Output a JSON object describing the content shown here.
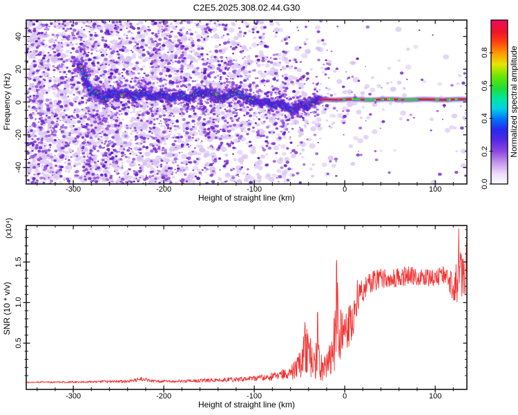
{
  "figure": {
    "title": "C2E5.2025.308.02.44.G30",
    "background": "#ffffff",
    "frame_color": "#111111"
  },
  "chart_data": [
    {
      "type": "heatmap",
      "name": "spectrogram",
      "title": "C2E5.2025.308.02.44.G30",
      "xlabel": "Height of straight line (km)",
      "ylabel": "Frequency (Hz)",
      "xlim": [
        -352,
        135
      ],
      "ylim": [
        -50,
        50
      ],
      "xticks": [
        {
          "v": -300,
          "label": "-300"
        },
        {
          "v": -200,
          "label": "-200"
        },
        {
          "v": -100,
          "label": "-100"
        },
        {
          "v": 0,
          "label": "0"
        },
        {
          "v": 100,
          "label": "100"
        }
      ],
      "xtick_minor_step": 20,
      "yticks": [
        {
          "v": 40,
          "label": "40"
        },
        {
          "v": 20,
          "label": "20"
        },
        {
          "v": 0,
          "label": "0"
        },
        {
          "v": -20,
          "label": "-20"
        },
        {
          "v": -40,
          "label": "-40"
        }
      ],
      "ytick_minor_step": 5,
      "colorbar": {
        "label": "Normalized spectral amplitude",
        "range": [
          0,
          1
        ],
        "ticks": [
          {
            "v": 0.0,
            "label": "0.0"
          },
          {
            "v": 0.2,
            "label": "0.2"
          },
          {
            "v": 0.4,
            "label": "0.4"
          },
          {
            "v": 0.6,
            "label": "0.6"
          },
          {
            "v": 0.8,
            "label": "0.8"
          }
        ],
        "stops": [
          [
            0.0,
            "#fdfbff"
          ],
          [
            0.06,
            "#eedefa"
          ],
          [
            0.13,
            "#c496eb"
          ],
          [
            0.2,
            "#8c46e1"
          ],
          [
            0.27,
            "#5028e6"
          ],
          [
            0.33,
            "#2828f0"
          ],
          [
            0.4,
            "#0078fa"
          ],
          [
            0.46,
            "#00d2e6"
          ],
          [
            0.52,
            "#00e6a0"
          ],
          [
            0.58,
            "#1edc3c"
          ],
          [
            0.66,
            "#6ee600"
          ],
          [
            0.73,
            "#e6e600"
          ],
          [
            0.8,
            "#ff9600"
          ],
          [
            0.87,
            "#ff3c14"
          ],
          [
            0.93,
            "#f01428"
          ],
          [
            1.0,
            "#eb0a5f"
          ]
        ]
      },
      "noise_palette": {
        "pale": "#d6bdf2",
        "dark": [
          "#8b3fd9",
          "#7226d2",
          "#5a16c6",
          "#9b5ce2"
        ]
      },
      "band_path": [
        [
          -293,
          22,
          0.52
        ],
        [
          -288,
          16,
          0.5
        ],
        [
          -283,
          9,
          0.58
        ],
        [
          -279,
          4,
          0.55
        ],
        [
          -275,
          7,
          0.5
        ],
        [
          -270,
          3,
          0.46
        ],
        [
          -266,
          1,
          0.5
        ],
        [
          -262,
          4,
          0.55
        ],
        [
          -257,
          6,
          0.5
        ],
        [
          -252,
          4,
          0.46
        ],
        [
          -247,
          5,
          0.5
        ],
        [
          -242,
          6,
          0.56
        ],
        [
          -237,
          4,
          0.62
        ],
        [
          -232,
          3,
          0.5
        ],
        [
          -227,
          5,
          0.46
        ],
        [
          -222,
          6,
          0.5
        ],
        [
          -217,
          4,
          0.46
        ],
        [
          -212,
          2,
          0.5
        ],
        [
          -207,
          4,
          0.55
        ],
        [
          -202,
          5,
          0.5
        ],
        [
          -197,
          3,
          0.46
        ],
        [
          -192,
          2,
          0.5
        ],
        [
          -187,
          4,
          0.56
        ],
        [
          -182,
          5,
          0.5
        ],
        [
          -177,
          3,
          0.46
        ],
        [
          -172,
          2,
          0.5
        ],
        [
          -167,
          4,
          0.6
        ],
        [
          -162,
          6,
          0.55
        ],
        [
          -157,
          5,
          0.5
        ],
        [
          -152,
          6,
          0.55
        ],
        [
          -147,
          5,
          0.6
        ],
        [
          -142,
          4,
          0.5
        ],
        [
          -137,
          2,
          0.46
        ],
        [
          -132,
          3,
          0.5
        ],
        [
          -127,
          5,
          0.56
        ],
        [
          -122,
          6,
          0.5
        ],
        [
          -117,
          5,
          0.46
        ],
        [
          -112,
          4,
          0.5
        ],
        [
          -107,
          2,
          0.46
        ],
        [
          -102,
          1,
          0.5
        ],
        [
          -97,
          0,
          0.46
        ],
        [
          -92,
          -1,
          0.5
        ],
        [
          -87,
          1,
          0.46
        ],
        [
          -82,
          -2,
          0.5
        ],
        [
          -77,
          -1,
          0.46
        ],
        [
          -72,
          0,
          0.5
        ],
        [
          -67,
          -2,
          0.46
        ],
        [
          -62,
          -4,
          0.5
        ],
        [
          -57,
          -5,
          0.55
        ],
        [
          -52,
          -3,
          0.6
        ],
        [
          -47,
          -2,
          0.56
        ],
        [
          -42,
          -3,
          0.6
        ],
        [
          -38,
          -1,
          0.64
        ],
        [
          -34,
          0,
          0.62
        ],
        [
          -30,
          1.5,
          0.7
        ],
        [
          -26,
          1.5,
          0.8
        ]
      ],
      "line_center_hz": 1.5,
      "line_start_km": -26,
      "red_segments": [
        [
          -27,
          -8
        ],
        [
          -6,
          -3
        ],
        [
          2,
          7
        ],
        [
          18,
          21
        ],
        [
          35,
          39
        ],
        [
          44,
          46
        ],
        [
          55,
          58
        ],
        [
          63,
          65
        ],
        [
          82,
          99
        ],
        [
          105,
          112
        ],
        [
          118,
          121
        ],
        [
          126,
          135
        ]
      ]
    },
    {
      "type": "line",
      "name": "snr",
      "xlabel": "Height of straight line (km)",
      "ylabel": "SNR (10 * v/v)",
      "ylabel_scale": "(x10⁴)",
      "xlim": [
        -352,
        135
      ],
      "ylim": [
        -0.07,
        1.95
      ],
      "line_color": "#f23333",
      "xticks": [
        {
          "v": -300,
          "label": "-300"
        },
        {
          "v": -200,
          "label": "-200"
        },
        {
          "v": -100,
          "label": "-100"
        },
        {
          "v": 0,
          "label": "0"
        },
        {
          "v": 100,
          "label": "100"
        }
      ],
      "xtick_minor_step": 20,
      "yticks": [
        {
          "v": 0.5,
          "label": "0.5"
        },
        {
          "v": 1.0,
          "label": "1.0"
        },
        {
          "v": 1.5,
          "label": "1.5"
        }
      ],
      "ytick_minor_step": 0.1,
      "keypoints": [
        [
          -352,
          0.018,
          0.01
        ],
        [
          -330,
          0.02,
          0.012
        ],
        [
          -310,
          0.02,
          0.012
        ],
        [
          -300,
          0.022,
          0.014
        ],
        [
          -290,
          0.02,
          0.012
        ],
        [
          -280,
          0.022,
          0.014
        ],
        [
          -270,
          0.025,
          0.016
        ],
        [
          -260,
          0.025,
          0.018
        ],
        [
          -250,
          0.03,
          0.02
        ],
        [
          -240,
          0.03,
          0.02
        ],
        [
          -232,
          0.04,
          0.025
        ],
        [
          -226,
          0.06,
          0.03
        ],
        [
          -221,
          0.05,
          0.025
        ],
        [
          -215,
          0.035,
          0.02
        ],
        [
          -205,
          0.03,
          0.018
        ],
        [
          -195,
          0.03,
          0.018
        ],
        [
          -185,
          0.03,
          0.02
        ],
        [
          -175,
          0.035,
          0.02
        ],
        [
          -165,
          0.035,
          0.022
        ],
        [
          -155,
          0.04,
          0.025
        ],
        [
          -145,
          0.045,
          0.025
        ],
        [
          -135,
          0.05,
          0.028
        ],
        [
          -125,
          0.05,
          0.03
        ],
        [
          -115,
          0.055,
          0.032
        ],
        [
          -105,
          0.06,
          0.035
        ],
        [
          -95,
          0.07,
          0.04
        ],
        [
          -85,
          0.085,
          0.05
        ],
        [
          -75,
          0.1,
          0.06
        ],
        [
          -65,
          0.12,
          0.07
        ],
        [
          -58,
          0.15,
          0.1
        ],
        [
          -52,
          0.22,
          0.16
        ],
        [
          -47,
          0.3,
          0.22
        ],
        [
          -43,
          0.42,
          0.28
        ],
        [
          -39,
          0.38,
          0.28
        ],
        [
          -35,
          0.3,
          0.26
        ],
        [
          -31,
          0.33,
          0.28
        ],
        [
          -27,
          0.22,
          0.18
        ],
        [
          -23,
          0.18,
          0.16
        ],
        [
          -19,
          0.28,
          0.22
        ],
        [
          -15,
          0.4,
          0.3
        ],
        [
          -11,
          0.55,
          0.4
        ],
        [
          -7,
          0.6,
          0.35
        ],
        [
          -3,
          0.62,
          0.28
        ],
        [
          1,
          0.66,
          0.26
        ],
        [
          5,
          0.7,
          0.26
        ],
        [
          9,
          0.76,
          0.24
        ],
        [
          13,
          0.92,
          0.22
        ],
        [
          17,
          1.08,
          0.18
        ],
        [
          21,
          1.17,
          0.15
        ],
        [
          26,
          1.22,
          0.13
        ],
        [
          32,
          1.27,
          0.13
        ],
        [
          40,
          1.3,
          0.12
        ],
        [
          50,
          1.28,
          0.12
        ],
        [
          60,
          1.31,
          0.12
        ],
        [
          70,
          1.33,
          0.13
        ],
        [
          80,
          1.32,
          0.12
        ],
        [
          90,
          1.3,
          0.11
        ],
        [
          100,
          1.31,
          0.11
        ],
        [
          108,
          1.33,
          0.12
        ],
        [
          114,
          1.28,
          0.14
        ],
        [
          119,
          1.22,
          0.18
        ],
        [
          123,
          1.28,
          0.3
        ],
        [
          127,
          1.45,
          0.4
        ],
        [
          130,
          1.3,
          0.28
        ],
        [
          133,
          1.32,
          0.22
        ],
        [
          135,
          1.3,
          0.15
        ]
      ],
      "spikes": [
        [
          -44,
          0.78
        ],
        [
          -30,
          0.95
        ],
        [
          -9,
          1.62
        ],
        [
          -8,
          1.3
        ],
        [
          14,
          1.28
        ],
        [
          126,
          1.92
        ],
        [
          128,
          1.7
        ],
        [
          134.5,
          1.85
        ]
      ]
    }
  ]
}
